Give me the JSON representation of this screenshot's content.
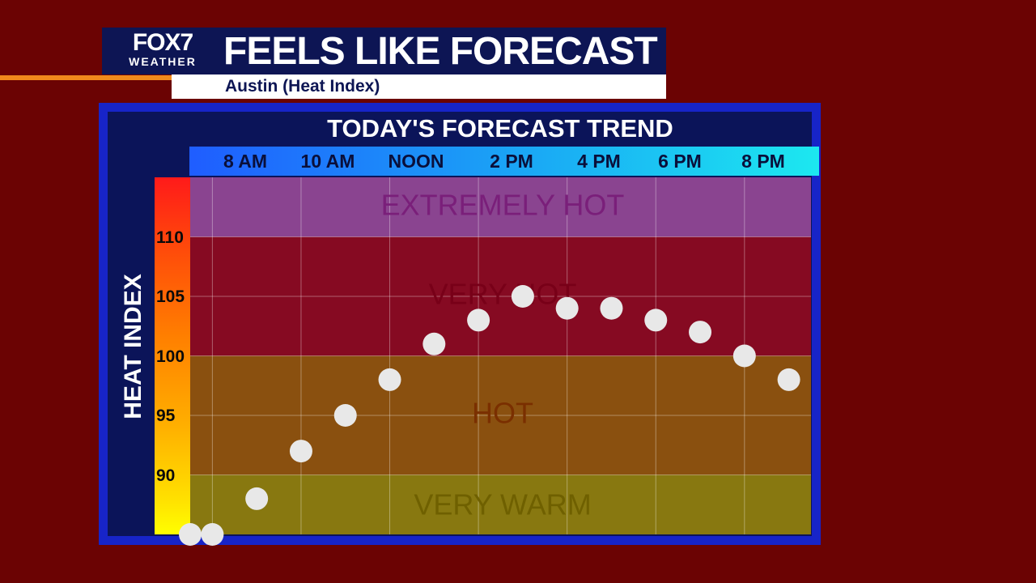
{
  "header": {
    "logo_top": "FOX7",
    "logo_bottom": "WEATHER",
    "title": "FEELS LIKE FORECAST",
    "subtitle": "Austin (Heat Index)"
  },
  "chart_data": {
    "type": "scatter",
    "title": "TODAY'S FORECAST TREND",
    "ylabel": "HEAT INDEX",
    "xlabel": "",
    "ylim": [
      85,
      115
    ],
    "yticks": [
      90,
      95,
      100,
      105,
      110
    ],
    "xticks": [
      "8 AM",
      "10 AM",
      "NOON",
      "2 PM",
      "4 PM",
      "6 PM",
      "8 PM"
    ],
    "x": [
      7.5,
      8,
      9,
      10,
      11,
      12,
      13,
      14,
      15,
      16,
      17,
      18,
      19,
      20,
      21
    ],
    "values": [
      85,
      85,
      88,
      92,
      95,
      98,
      101,
      103,
      105,
      104,
      104,
      103,
      102,
      100,
      98
    ],
    "bands": [
      {
        "label": "EXTREMELY HOT",
        "from": 110,
        "to": 115,
        "color": "#8a4490",
        "label_color": "#7a1f7a"
      },
      {
        "label": "VERY HOT",
        "from": 100,
        "to": 110,
        "color": "#860a22",
        "label_color": "#780018"
      },
      {
        "label": "HOT",
        "from": 90,
        "to": 100,
        "color": "#8a500f",
        "label_color": "#7a2f00"
      },
      {
        "label": "VERY WARM",
        "from": 85,
        "to": 90,
        "color": "#887810",
        "label_color": "#6f6000"
      }
    ],
    "marker_color": "#e8e8e8",
    "grid": true
  }
}
